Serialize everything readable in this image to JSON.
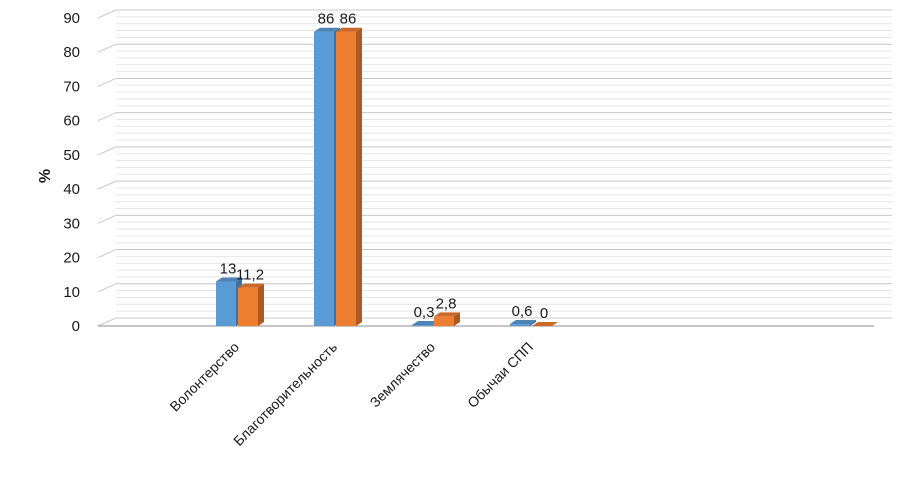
{
  "chart_data": {
    "type": "bar",
    "title": "",
    "xlabel": "",
    "ylabel": "%",
    "ylim": [
      0,
      90
    ],
    "yticks": [
      "0",
      "10",
      "20",
      "30",
      "40",
      "50",
      "60",
      "70",
      "80",
      "90"
    ],
    "categories": [
      "Волонтерство",
      "Благотворительность",
      "Землячество",
      "Обычаи СПП"
    ],
    "series": [
      {
        "values": [
          13,
          86,
          0.3,
          0.6
        ],
        "labels": [
          "13",
          "86",
          "0,3",
          "0,6"
        ],
        "color": "#5b9bd5"
      },
      {
        "values": [
          11.2,
          86,
          2.8,
          0
        ],
        "labels": [
          "11,2",
          "86",
          "2,8",
          "0"
        ],
        "color": "#ed7d31"
      }
    ],
    "grid": true,
    "style": "3d-clustered-bar"
  }
}
